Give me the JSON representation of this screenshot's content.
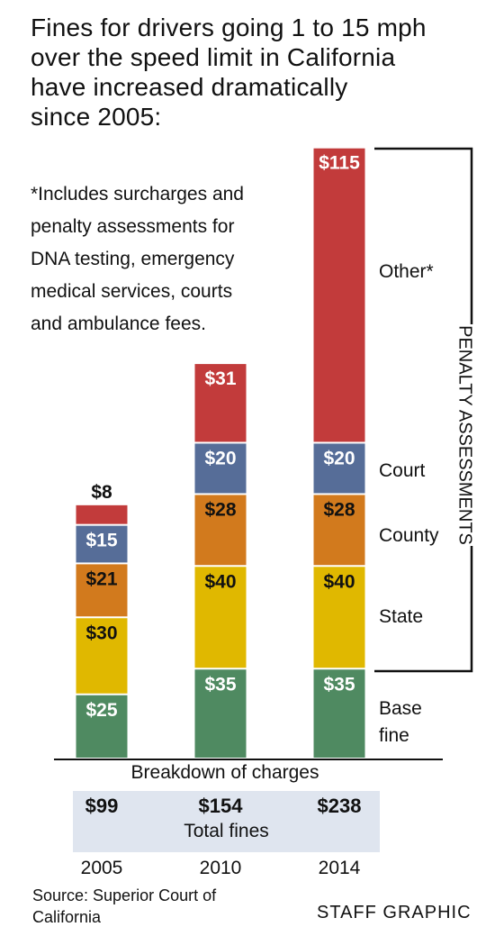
{
  "title_lines": [
    "Fines for drivers going 1 to 15 mph",
    "over the speed limit in California",
    "have increased dramatically",
    "since 2005:"
  ],
  "note_lines": [
    "*Includes surcharges and",
    "penalty assessments for",
    "DNA testing, emergency",
    "medical services, courts",
    "and ambulance fees."
  ],
  "chart_data": {
    "type": "bar",
    "stacked": true,
    "categories": [
      "2005",
      "2010",
      "2014"
    ],
    "series": [
      {
        "name": "Base fine",
        "color": "#4f8a61",
        "values": [
          25,
          35,
          35
        ]
      },
      {
        "name": "State",
        "color": "#e0b800",
        "values": [
          30,
          40,
          40
        ]
      },
      {
        "name": "County",
        "color": "#d27a1d",
        "values": [
          21,
          28,
          28
        ]
      },
      {
        "name": "Court",
        "color": "#566d98",
        "values": [
          15,
          20,
          20
        ]
      },
      {
        "name": "Other*",
        "color": "#c23b3b",
        "values": [
          8,
          31,
          115
        ]
      }
    ],
    "value_labels": [
      [
        "$25",
        "$35",
        "$35"
      ],
      [
        "$30",
        "$40",
        "$40"
      ],
      [
        "$21",
        "$28",
        "$28"
      ],
      [
        "$15",
        "$20",
        "$20"
      ],
      [
        "$8",
        "$31",
        "$115"
      ]
    ],
    "totals": [
      "$99",
      "$154",
      "$238"
    ],
    "xlabel": "Breakdown of charges",
    "totals_label": "Total fines",
    "bracket_label": "PENALTY ASSESSMENTS",
    "bracket_covers": [
      "State",
      "County",
      "Court",
      "Other*"
    ]
  },
  "legend_labels": {
    "base_fine": [
      "Base",
      "fine"
    ],
    "state": "State",
    "county": "County",
    "court": "Court",
    "other": "Other*"
  },
  "source_lines": [
    "Source: Superior Court of",
    "California"
  ],
  "credit": "STAFF GRAPHIC"
}
